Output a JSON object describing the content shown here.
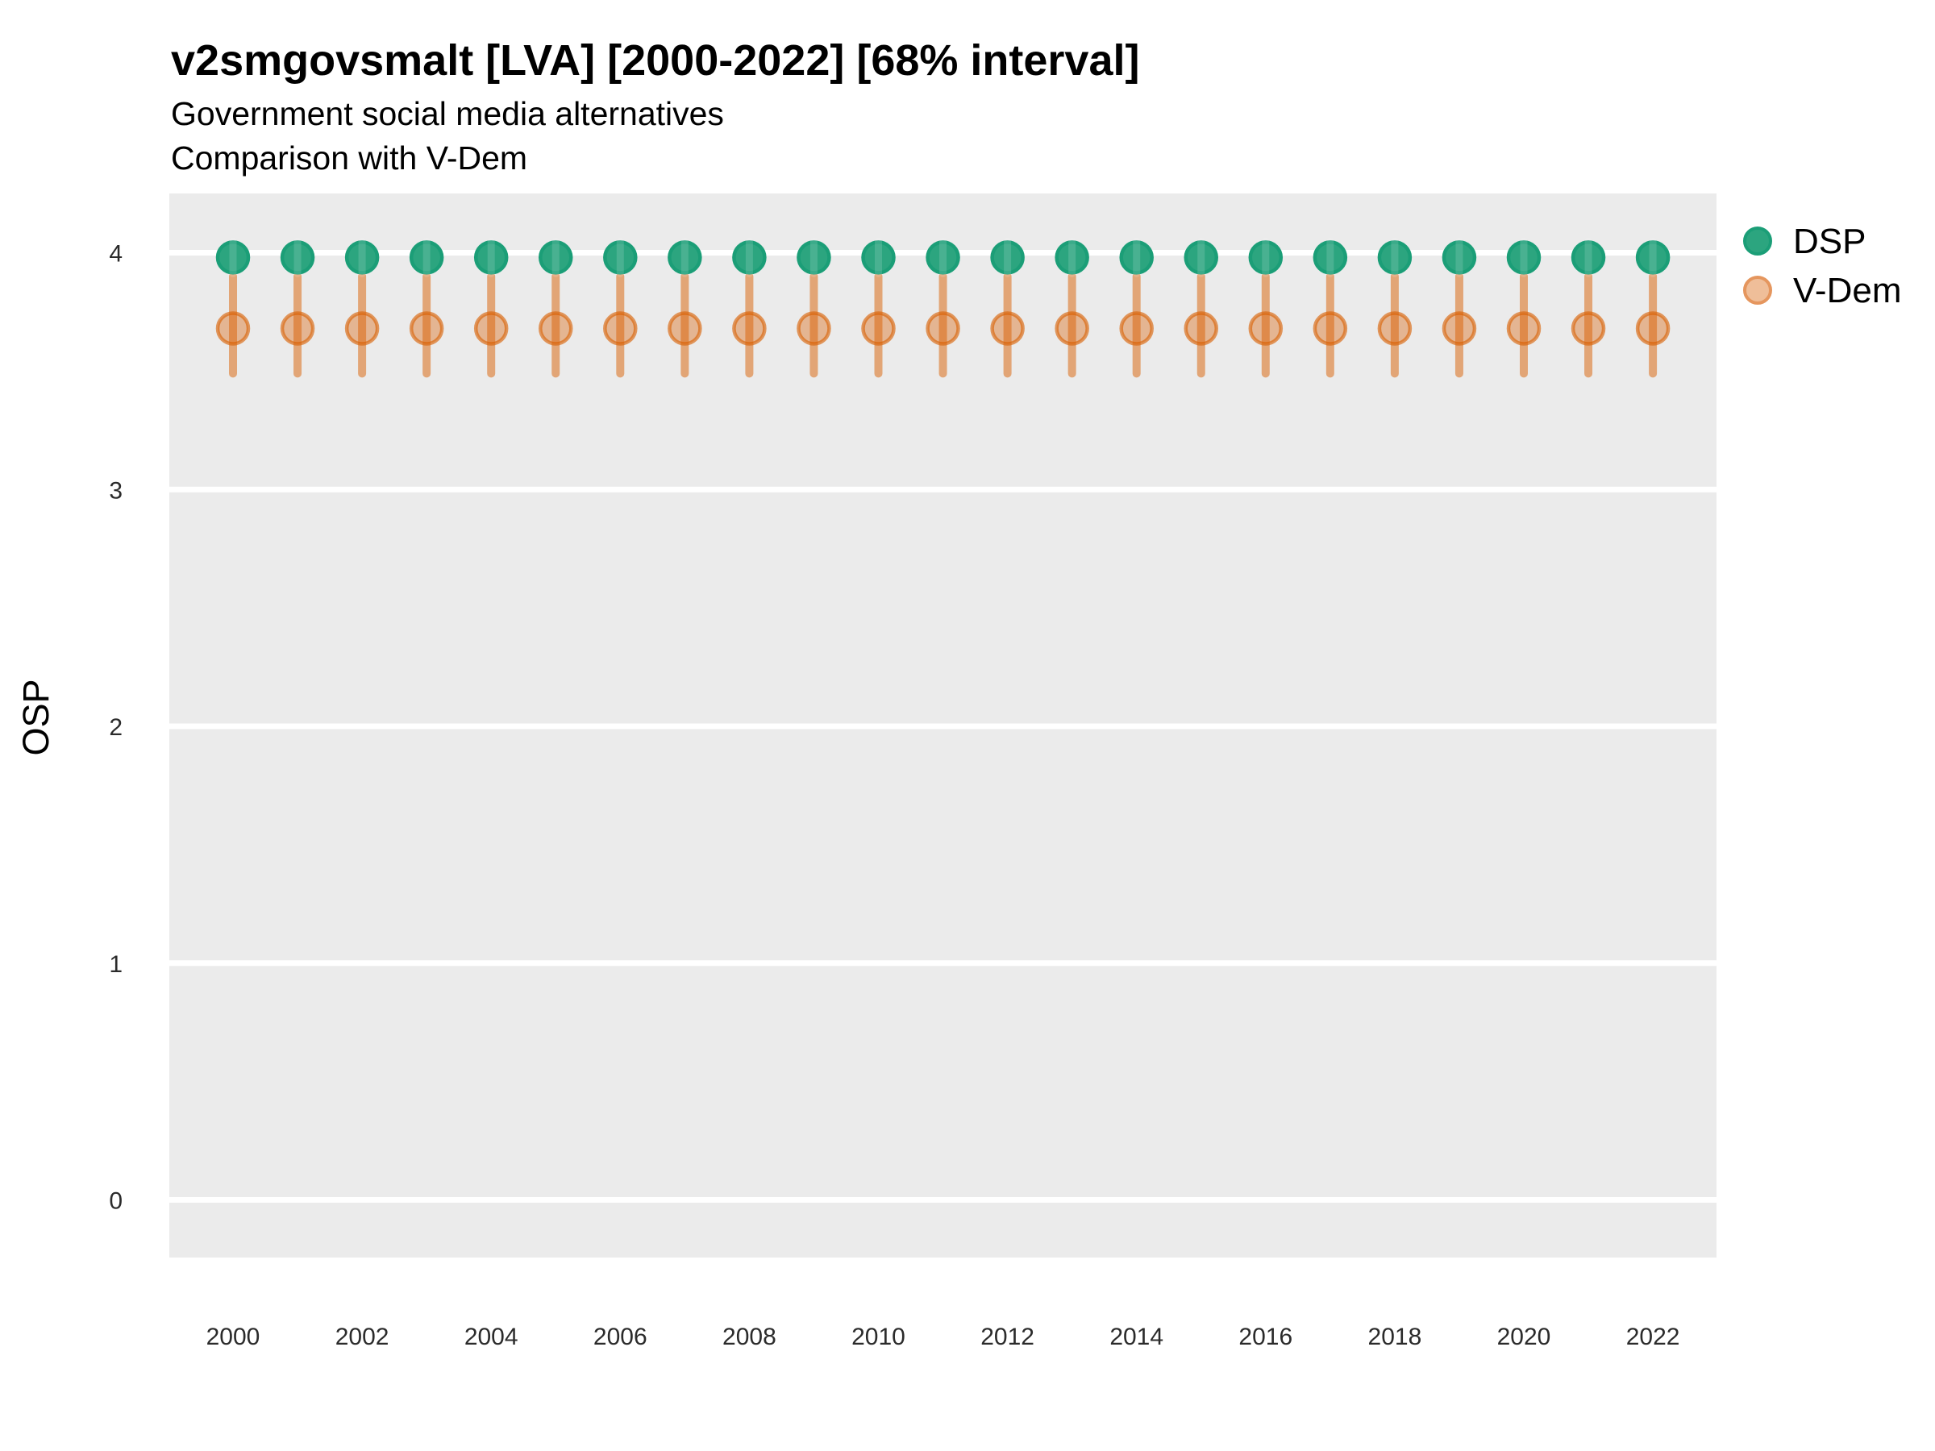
{
  "header": {
    "title": "v2smgovsmalt [LVA] [2000-2022] [68% interval]",
    "subtitle_line1": "Government social media alternatives",
    "subtitle_line2": "Comparison with V-Dem"
  },
  "axes": {
    "y_title": "OSP",
    "y_tick_labels": [
      "0",
      "1",
      "2",
      "3",
      "4"
    ],
    "x_tick_labels": [
      "2000",
      "2002",
      "2004",
      "2006",
      "2008",
      "2010",
      "2012",
      "2014",
      "2016",
      "2018",
      "2020",
      "2022"
    ]
  },
  "legend": {
    "items": [
      {
        "label": "DSP",
        "fill": "#2CA57F",
        "stroke": "#1B9E77"
      },
      {
        "label": "V-Dem",
        "fill": "#EFBE99",
        "stroke": "#E5965E"
      }
    ]
  },
  "colors": {
    "panel_background": "#EBEBEB",
    "gridline": "#FFFFFF",
    "dsp_fill": "#2CA57F",
    "dsp_stroke": "#1B9E77",
    "dsp_band": "rgba(255,255,255,0.14)",
    "vdem_bar": "rgba(217,95,2,0.50)",
    "vdem_fill": "rgba(217,95,2,0.38)",
    "vdem_stroke": "rgba(217,95,2,0.62)"
  },
  "chart_data": {
    "type": "scatter",
    "subtype": "pointrange",
    "title": "v2smgovsmalt [LVA] [2000-2022] [68% interval]",
    "subtitle": [
      "Government social media alternatives",
      "Comparison with V-Dem"
    ],
    "xlabel": "",
    "ylabel": "OSP",
    "interval_label": "68% interval",
    "grid": "major-horizontal-white-on-gray",
    "legend_position": "right-top",
    "xlim": [
      1999,
      2023.1
    ],
    "ylim": [
      -0.25,
      4.25
    ],
    "y_ticks": [
      0,
      1,
      2,
      3,
      4
    ],
    "x_ticks": [
      2000,
      2002,
      2004,
      2006,
      2008,
      2010,
      2012,
      2014,
      2016,
      2018,
      2020,
      2022
    ],
    "x": [
      2000,
      2001,
      2002,
      2003,
      2004,
      2005,
      2006,
      2007,
      2008,
      2009,
      2010,
      2011,
      2012,
      2013,
      2014,
      2015,
      2016,
      2017,
      2018,
      2019,
      2020,
      2021,
      2022
    ],
    "series": [
      {
        "name": "DSP",
        "color": "#1B9E77",
        "values": [
          3.98,
          3.98,
          3.98,
          3.98,
          3.98,
          3.98,
          3.98,
          3.98,
          3.98,
          3.98,
          3.98,
          3.98,
          3.98,
          3.98,
          3.98,
          3.98,
          3.98,
          3.98,
          3.98,
          3.98,
          3.98,
          3.98,
          3.98
        ]
      },
      {
        "name": "V-Dem",
        "color": "#D95F02",
        "values": [
          3.68,
          3.68,
          3.68,
          3.68,
          3.68,
          3.68,
          3.68,
          3.68,
          3.68,
          3.68,
          3.68,
          3.68,
          3.68,
          3.68,
          3.68,
          3.68,
          3.68,
          3.68,
          3.68,
          3.68,
          3.68,
          3.68,
          3.68
        ],
        "interval_low": [
          3.49,
          3.49,
          3.49,
          3.49,
          3.49,
          3.49,
          3.49,
          3.49,
          3.49,
          3.49,
          3.49,
          3.49,
          3.49,
          3.49,
          3.49,
          3.49,
          3.49,
          3.49,
          3.49,
          3.49,
          3.49,
          3.49,
          3.49
        ],
        "interval_high": [
          3.9,
          3.9,
          3.9,
          3.9,
          3.9,
          3.9,
          3.9,
          3.9,
          3.9,
          3.9,
          3.9,
          3.9,
          3.9,
          3.9,
          3.9,
          3.9,
          3.9,
          3.9,
          3.9,
          3.9,
          3.9,
          3.9,
          3.9
        ]
      }
    ]
  }
}
